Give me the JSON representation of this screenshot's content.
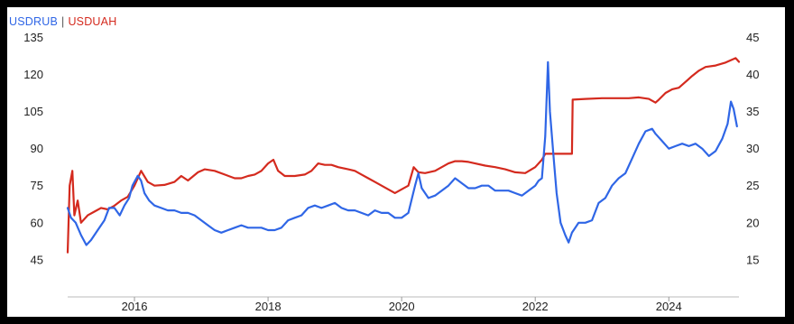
{
  "chart_data": {
    "type": "line",
    "legend": {
      "series1": "USDRUB",
      "separator": "|",
      "series2": "USDUAH",
      "placement": "top-left"
    },
    "x_ticks": [
      "2016",
      "2018",
      "2020",
      "2022",
      "2024"
    ],
    "x_tick_values": [
      2016,
      2018,
      2020,
      2022,
      2024
    ],
    "xlim": [
      2015.0,
      2025.05
    ],
    "left_axis": {
      "ticks": [
        "45",
        "60",
        "75",
        "90",
        "105",
        "120",
        "135"
      ],
      "ylim": [
        30,
        145
      ]
    },
    "right_axis": {
      "ticks": [
        "15",
        "20",
        "25",
        "30",
        "35",
        "40",
        "45"
      ],
      "ylim": [
        10,
        48.33
      ]
    },
    "grid": false,
    "series": [
      {
        "name": "USDRUB",
        "axis": "left",
        "color": "#2f66e6",
        "points": [
          [
            2015.0,
            66
          ],
          [
            2015.05,
            62
          ],
          [
            2015.12,
            60
          ],
          [
            2015.2,
            55
          ],
          [
            2015.28,
            51
          ],
          [
            2015.35,
            53
          ],
          [
            2015.45,
            57
          ],
          [
            2015.55,
            61
          ],
          [
            2015.62,
            66
          ],
          [
            2015.7,
            66
          ],
          [
            2015.78,
            63
          ],
          [
            2015.85,
            67
          ],
          [
            2015.92,
            70
          ],
          [
            2015.97,
            75
          ],
          [
            2016.05,
            79
          ],
          [
            2016.1,
            77
          ],
          [
            2016.15,
            72
          ],
          [
            2016.22,
            69
          ],
          [
            2016.3,
            67
          ],
          [
            2016.4,
            66
          ],
          [
            2016.5,
            65
          ],
          [
            2016.6,
            65
          ],
          [
            2016.7,
            64
          ],
          [
            2016.8,
            64
          ],
          [
            2016.9,
            63
          ],
          [
            2017.0,
            61
          ],
          [
            2017.1,
            59
          ],
          [
            2017.2,
            57
          ],
          [
            2017.3,
            56
          ],
          [
            2017.4,
            57
          ],
          [
            2017.5,
            58
          ],
          [
            2017.6,
            59
          ],
          [
            2017.7,
            58
          ],
          [
            2017.8,
            58
          ],
          [
            2017.9,
            58
          ],
          [
            2018.0,
            57
          ],
          [
            2018.1,
            57
          ],
          [
            2018.2,
            58
          ],
          [
            2018.3,
            61
          ],
          [
            2018.4,
            62
          ],
          [
            2018.5,
            63
          ],
          [
            2018.6,
            66
          ],
          [
            2018.7,
            67
          ],
          [
            2018.8,
            66
          ],
          [
            2018.9,
            67
          ],
          [
            2019.0,
            68
          ],
          [
            2019.1,
            66
          ],
          [
            2019.2,
            65
          ],
          [
            2019.3,
            65
          ],
          [
            2019.4,
            64
          ],
          [
            2019.5,
            63
          ],
          [
            2019.6,
            65
          ],
          [
            2019.7,
            64
          ],
          [
            2019.8,
            64
          ],
          [
            2019.9,
            62
          ],
          [
            2020.0,
            62
          ],
          [
            2020.1,
            64
          ],
          [
            2020.2,
            75
          ],
          [
            2020.25,
            80
          ],
          [
            2020.3,
            74
          ],
          [
            2020.4,
            70
          ],
          [
            2020.5,
            71
          ],
          [
            2020.6,
            73
          ],
          [
            2020.7,
            75
          ],
          [
            2020.8,
            78
          ],
          [
            2020.9,
            76
          ],
          [
            2021.0,
            74
          ],
          [
            2021.1,
            74
          ],
          [
            2021.2,
            75
          ],
          [
            2021.3,
            75
          ],
          [
            2021.4,
            73
          ],
          [
            2021.5,
            73
          ],
          [
            2021.6,
            73
          ],
          [
            2021.7,
            72
          ],
          [
            2021.8,
            71
          ],
          [
            2021.9,
            73
          ],
          [
            2022.0,
            75
          ],
          [
            2022.05,
            77
          ],
          [
            2022.1,
            78
          ],
          [
            2022.15,
            95
          ],
          [
            2022.19,
            125
          ],
          [
            2022.22,
            105
          ],
          [
            2022.28,
            85
          ],
          [
            2022.32,
            72
          ],
          [
            2022.38,
            60
          ],
          [
            2022.45,
            55
          ],
          [
            2022.5,
            52
          ],
          [
            2022.55,
            56
          ],
          [
            2022.65,
            60
          ],
          [
            2022.75,
            60
          ],
          [
            2022.85,
            61
          ],
          [
            2022.95,
            68
          ],
          [
            2023.05,
            70
          ],
          [
            2023.15,
            75
          ],
          [
            2023.25,
            78
          ],
          [
            2023.35,
            80
          ],
          [
            2023.45,
            86
          ],
          [
            2023.55,
            92
          ],
          [
            2023.65,
            97
          ],
          [
            2023.75,
            98
          ],
          [
            2023.8,
            96
          ],
          [
            2023.9,
            93
          ],
          [
            2024.0,
            90
          ],
          [
            2024.1,
            91
          ],
          [
            2024.2,
            92
          ],
          [
            2024.3,
            91
          ],
          [
            2024.4,
            92
          ],
          [
            2024.5,
            90
          ],
          [
            2024.6,
            87
          ],
          [
            2024.7,
            89
          ],
          [
            2024.8,
            94
          ],
          [
            2024.88,
            100
          ],
          [
            2024.93,
            109
          ],
          [
            2024.97,
            106
          ],
          [
            2025.02,
            99
          ]
        ]
      },
      {
        "name": "USDUAH",
        "axis": "right",
        "color": "#d42a1e",
        "points": [
          [
            2015.0,
            16
          ],
          [
            2015.03,
            25
          ],
          [
            2015.07,
            27
          ],
          [
            2015.1,
            21
          ],
          [
            2015.15,
            23
          ],
          [
            2015.2,
            20
          ],
          [
            2015.3,
            21
          ],
          [
            2015.4,
            21.5
          ],
          [
            2015.5,
            22
          ],
          [
            2015.6,
            21.8
          ],
          [
            2015.7,
            22.3
          ],
          [
            2015.8,
            23
          ],
          [
            2015.9,
            23.5
          ],
          [
            2016.0,
            25
          ],
          [
            2016.05,
            26
          ],
          [
            2016.1,
            27
          ],
          [
            2016.2,
            25.5
          ],
          [
            2016.3,
            25
          ],
          [
            2016.45,
            25.1
          ],
          [
            2016.6,
            25.5
          ],
          [
            2016.7,
            26.3
          ],
          [
            2016.8,
            25.7
          ],
          [
            2016.95,
            26.8
          ],
          [
            2017.05,
            27.2
          ],
          [
            2017.2,
            27
          ],
          [
            2017.35,
            26.5
          ],
          [
            2017.5,
            26
          ],
          [
            2017.6,
            26
          ],
          [
            2017.7,
            26.3
          ],
          [
            2017.8,
            26.5
          ],
          [
            2017.9,
            27
          ],
          [
            2018.0,
            28
          ],
          [
            2018.08,
            28.5
          ],
          [
            2018.15,
            27
          ],
          [
            2018.25,
            26.3
          ],
          [
            2018.4,
            26.3
          ],
          [
            2018.55,
            26.5
          ],
          [
            2018.65,
            27
          ],
          [
            2018.75,
            28
          ],
          [
            2018.85,
            27.8
          ],
          [
            2018.95,
            27.8
          ],
          [
            2019.05,
            27.5
          ],
          [
            2019.2,
            27.2
          ],
          [
            2019.3,
            27
          ],
          [
            2019.4,
            26.5
          ],
          [
            2019.5,
            26
          ],
          [
            2019.6,
            25.5
          ],
          [
            2019.7,
            25
          ],
          [
            2019.8,
            24.5
          ],
          [
            2019.9,
            24
          ],
          [
            2020.0,
            24.5
          ],
          [
            2020.1,
            25
          ],
          [
            2020.18,
            27.5
          ],
          [
            2020.25,
            26.8
          ],
          [
            2020.35,
            26.7
          ],
          [
            2020.5,
            27
          ],
          [
            2020.6,
            27.5
          ],
          [
            2020.7,
            28
          ],
          [
            2020.8,
            28.3
          ],
          [
            2020.9,
            28.3
          ],
          [
            2021.0,
            28.2
          ],
          [
            2021.1,
            28
          ],
          [
            2021.25,
            27.7
          ],
          [
            2021.4,
            27.5
          ],
          [
            2021.55,
            27.2
          ],
          [
            2021.7,
            26.8
          ],
          [
            2021.85,
            26.7
          ],
          [
            2022.0,
            27.5
          ],
          [
            2022.1,
            28.5
          ],
          [
            2022.15,
            29.3
          ],
          [
            2022.3,
            29.3
          ],
          [
            2022.45,
            29.3
          ],
          [
            2022.55,
            29.3
          ],
          [
            2022.56,
            36.6
          ],
          [
            2022.75,
            36.7
          ],
          [
            2023.0,
            36.8
          ],
          [
            2023.2,
            36.8
          ],
          [
            2023.4,
            36.8
          ],
          [
            2023.55,
            36.9
          ],
          [
            2023.7,
            36.7
          ],
          [
            2023.8,
            36.2
          ],
          [
            2023.85,
            36.6
          ],
          [
            2023.95,
            37.5
          ],
          [
            2024.05,
            38
          ],
          [
            2024.15,
            38.2
          ],
          [
            2024.25,
            39
          ],
          [
            2024.35,
            39.8
          ],
          [
            2024.45,
            40.5
          ],
          [
            2024.55,
            41
          ],
          [
            2024.7,
            41.2
          ],
          [
            2024.85,
            41.6
          ],
          [
            2024.95,
            42
          ],
          [
            2025.0,
            42.2
          ],
          [
            2025.05,
            41.7
          ]
        ]
      }
    ]
  }
}
